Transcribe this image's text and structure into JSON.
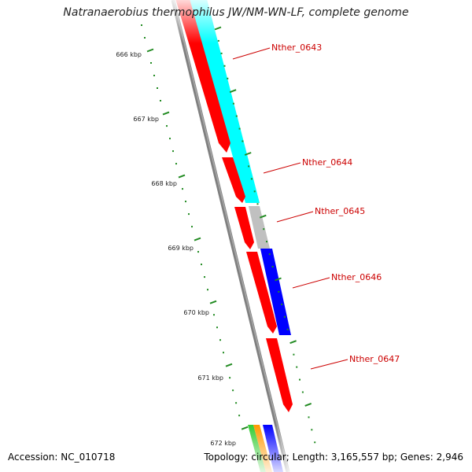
{
  "title": "Natranaerobius thermophilus JW/NM-WN-LF, complete genome",
  "scale_labels": [
    "666 kbp",
    "667 kbp",
    "668 kbp",
    "669 kbp",
    "670 kbp",
    "671 kbp",
    "672 kbp"
  ],
  "gene_labels": [
    "Nther_0643",
    "Nther_0644",
    "Nther_0645",
    "Nther_0646",
    "Nther_0647"
  ],
  "footer": {
    "accession": "Accession: NC_010718",
    "summary": "Topology: circular; Length: 3,165,557 bp; Genes: 2,946"
  },
  "colors": {
    "backbone": "#808080",
    "cds": "#ff0000",
    "cog_cyan": "#00ffff",
    "cog_grey": "#c0c0c0",
    "cog_blue": "#0000ff",
    "cog_green": "#33cc33",
    "cog_orange": "#ff9900",
    "ticks": "#228b22",
    "label_text": "#cc0000"
  }
}
